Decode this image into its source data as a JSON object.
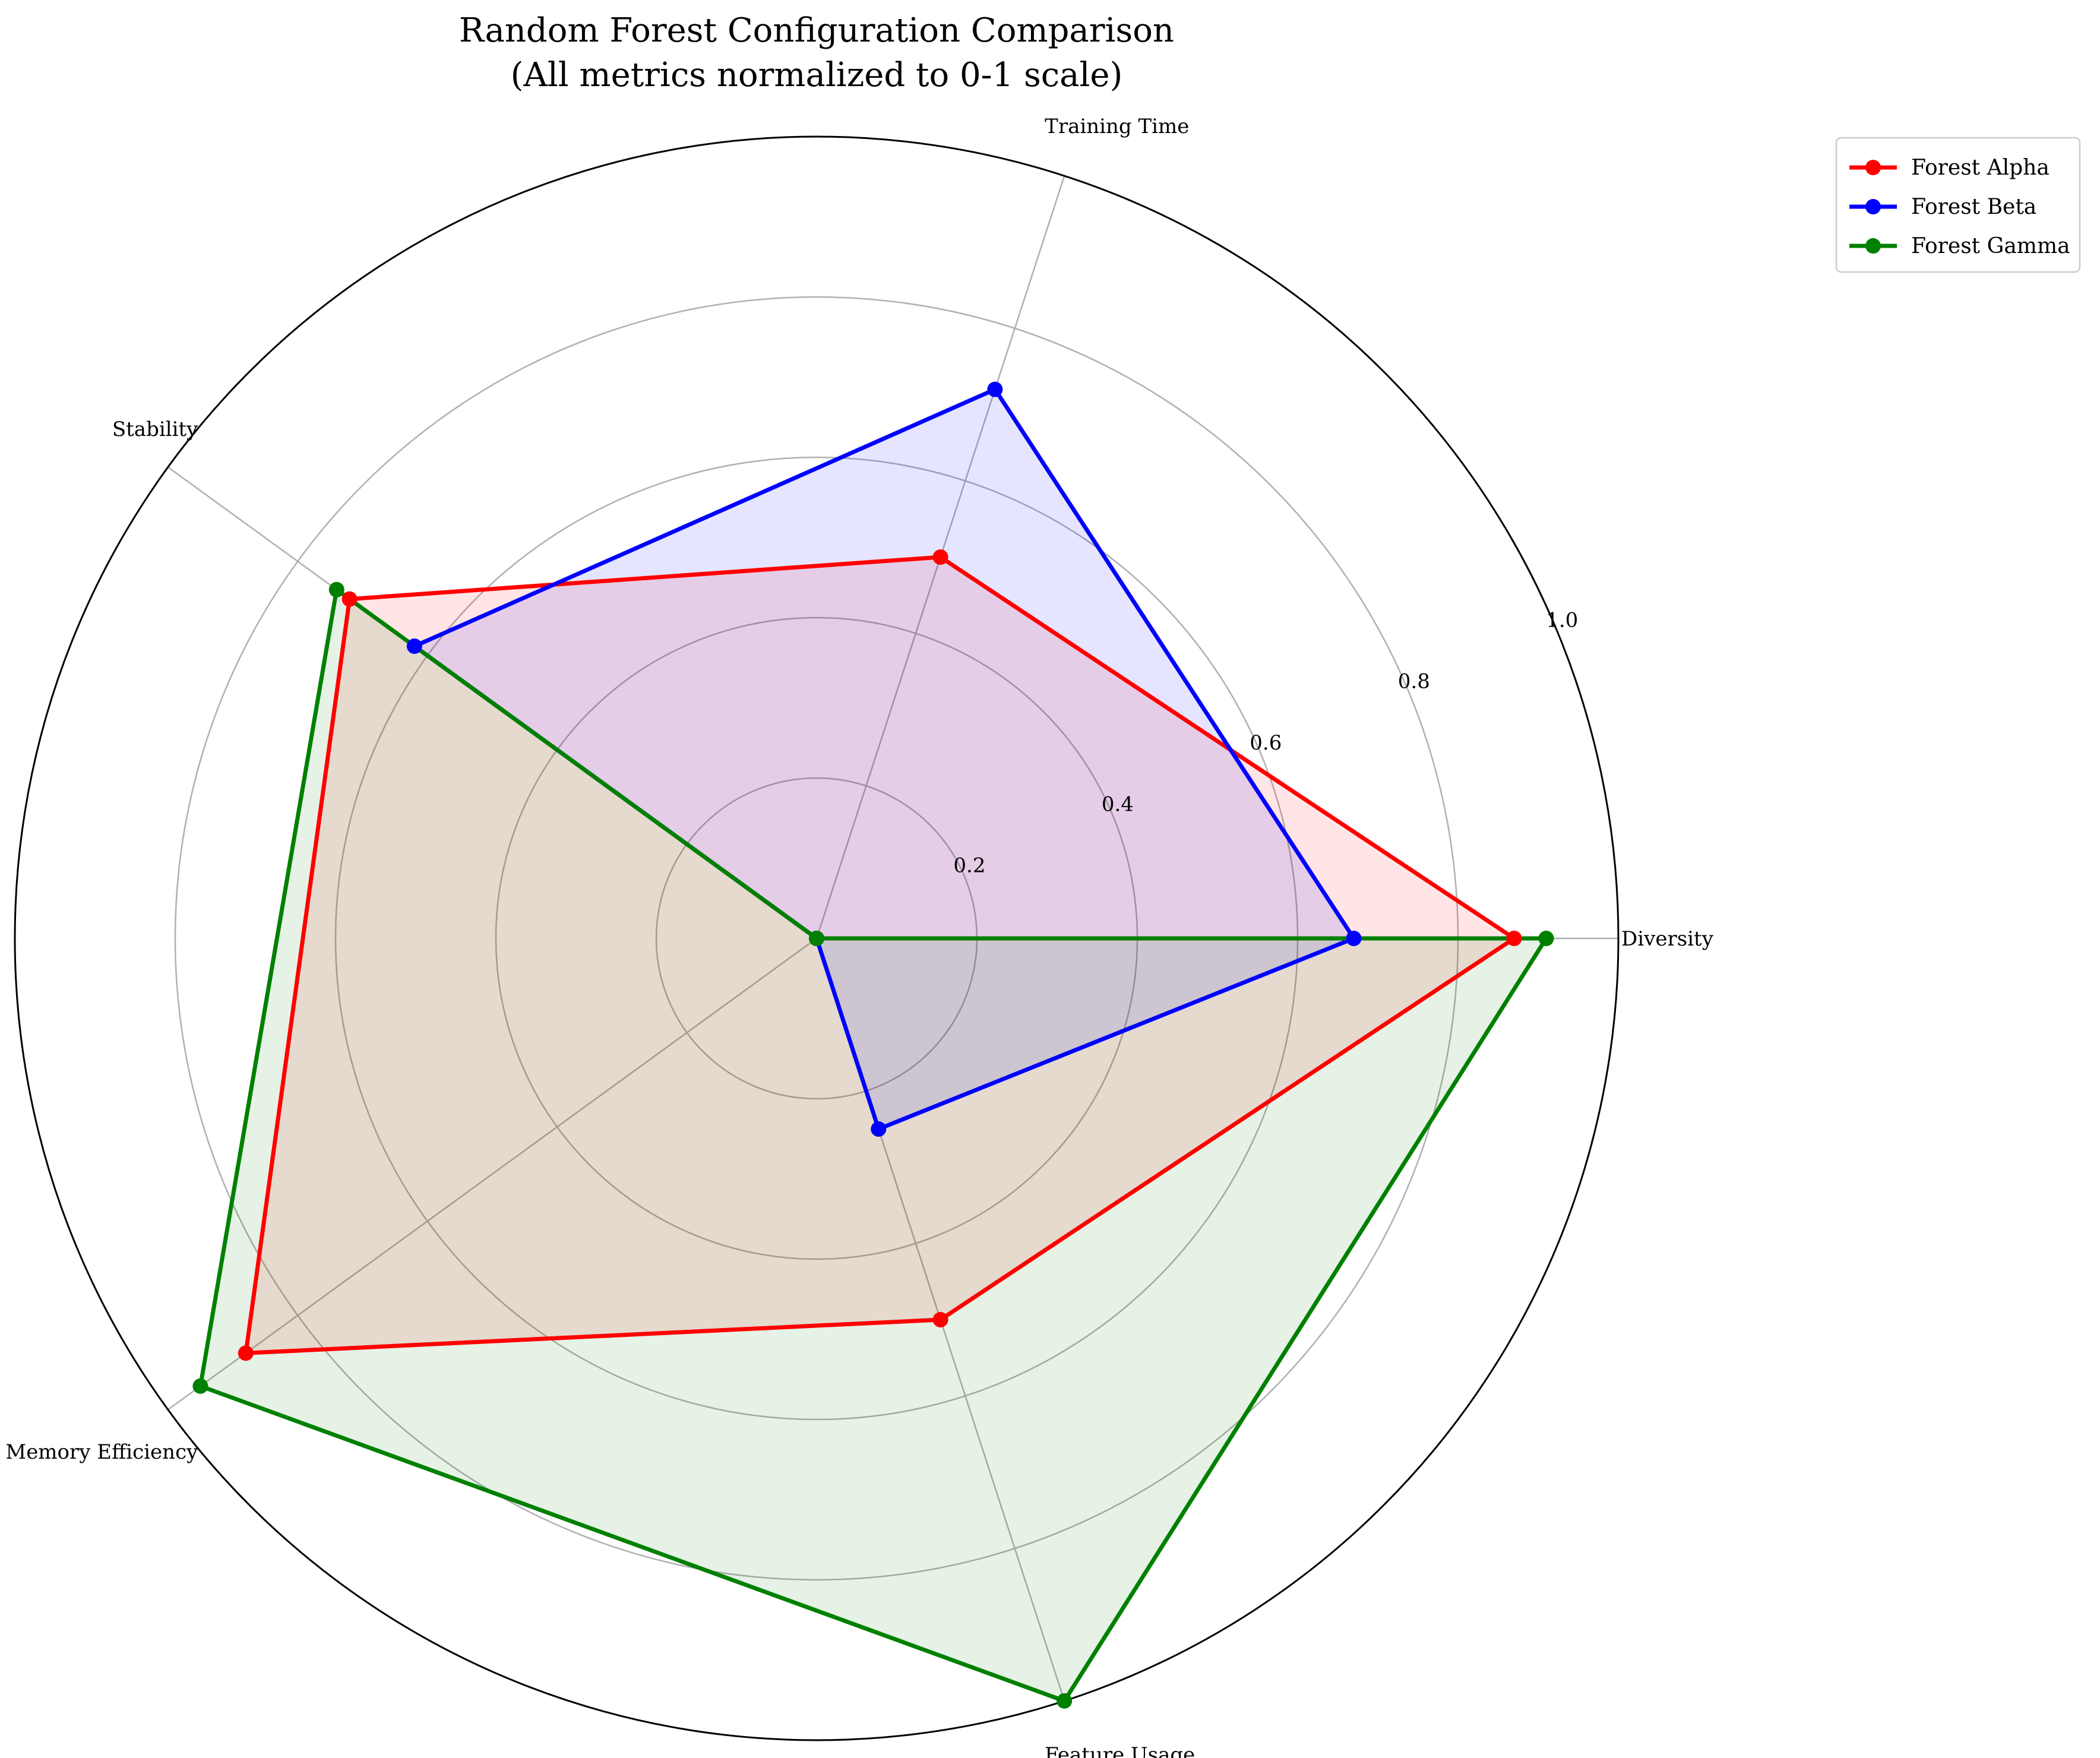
{
  "chart_data": {
    "type": "radar",
    "title": "Random Forest Configuration Comparison",
    "subtitle": "(All metrics normalized to 0-1 scale)",
    "axes": [
      "Diversity",
      "Training Time",
      "Stability",
      "Memory Efficiency",
      "Feature Usage"
    ],
    "rlim": [
      0,
      1.0
    ],
    "rticks": [
      0.2,
      0.4,
      0.6,
      0.8,
      1.0
    ],
    "rtick_labels": [
      "0.2",
      "0.4",
      "0.6",
      "0.8",
      "1.0"
    ],
    "grid": true,
    "legend_position": "upper right, outside plot",
    "series": [
      {
        "name": "Forest Alpha",
        "color": "#ff0000",
        "values": [
          0.87,
          0.5,
          0.72,
          0.88,
          0.5
        ]
      },
      {
        "name": "Forest Beta",
        "color": "#0000ff",
        "values": [
          0.67,
          0.72,
          0.62,
          0.0,
          0.25
        ]
      },
      {
        "name": "Forest Gamma",
        "color": "#008000",
        "values": [
          0.91,
          0.0,
          0.74,
          0.95,
          1.0
        ]
      }
    ]
  }
}
